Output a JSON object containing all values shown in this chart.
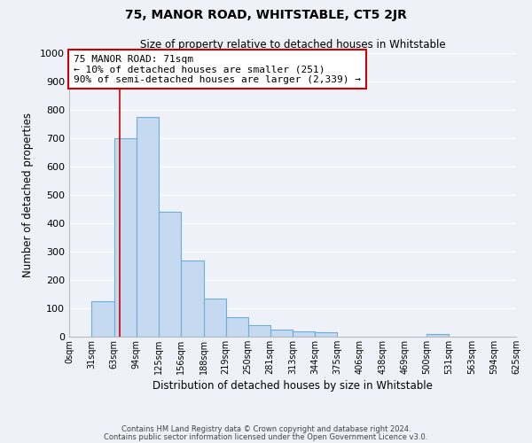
{
  "title": "75, MANOR ROAD, WHITSTABLE, CT5 2JR",
  "subtitle": "Size of property relative to detached houses in Whitstable",
  "xlabel": "Distribution of detached houses by size in Whitstable",
  "ylabel": "Number of detached properties",
  "bar_color": "#c5d9f0",
  "bar_edge_color": "#6baed6",
  "background_color": "#eef2f8",
  "grid_color": "#ffffff",
  "bin_edges": [
    0,
    31,
    63,
    94,
    125,
    156,
    188,
    219,
    250,
    281,
    313,
    344,
    375,
    406,
    438,
    469,
    500,
    531,
    563,
    594,
    625
  ],
  "bin_labels": [
    "0sqm",
    "31sqm",
    "63sqm",
    "94sqm",
    "125sqm",
    "156sqm",
    "188sqm",
    "219sqm",
    "250sqm",
    "281sqm",
    "313sqm",
    "344sqm",
    "375sqm",
    "406sqm",
    "438sqm",
    "469sqm",
    "500sqm",
    "531sqm",
    "563sqm",
    "594sqm",
    "625sqm"
  ],
  "bar_heights": [
    0,
    125,
    700,
    775,
    440,
    270,
    135,
    68,
    40,
    25,
    20,
    15,
    0,
    0,
    0,
    0,
    8,
    0,
    0,
    0
  ],
  "ylim": [
    0,
    1000
  ],
  "yticks": [
    0,
    100,
    200,
    300,
    400,
    500,
    600,
    700,
    800,
    900,
    1000
  ],
  "vline_x": 71,
  "vline_color": "#cc0000",
  "annotation_title": "75 MANOR ROAD: 71sqm",
  "annotation_line1": "← 10% of detached houses are smaller (251)",
  "annotation_line2": "90% of semi-detached houses are larger (2,339) →",
  "annotation_box_color": "#ffffff",
  "annotation_box_edge": "#cc0000",
  "footer1": "Contains HM Land Registry data © Crown copyright and database right 2024.",
  "footer2": "Contains public sector information licensed under the Open Government Licence v3.0."
}
